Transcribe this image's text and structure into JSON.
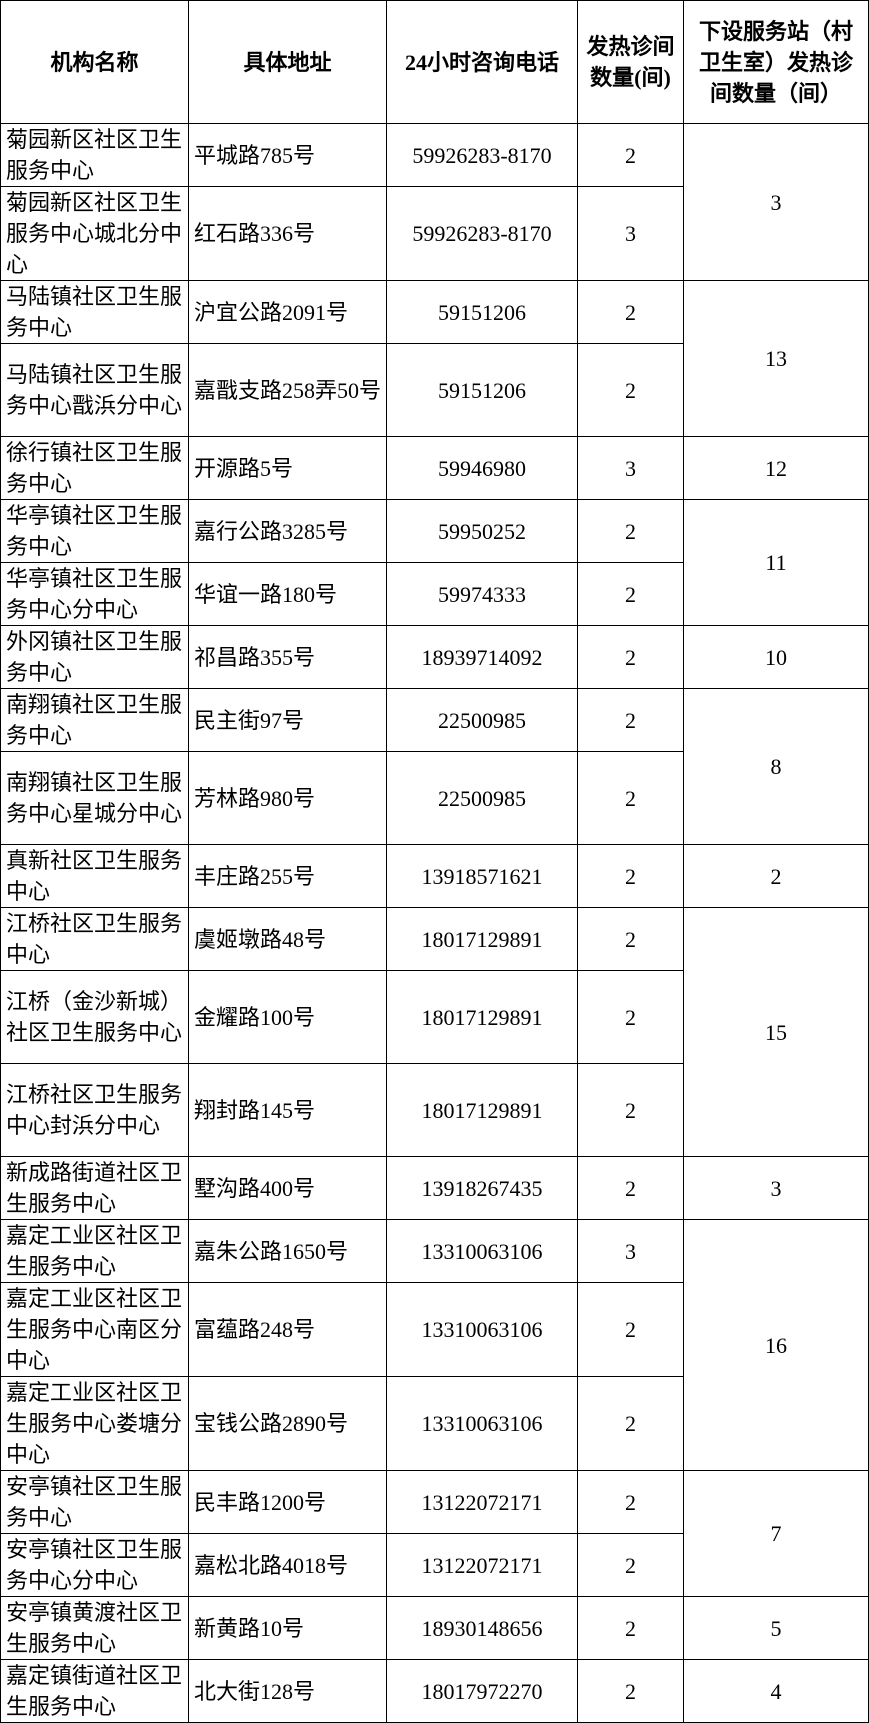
{
  "headers": [
    "机构名称",
    "具体地址",
    "24小时咨询电话",
    "发热诊间数量(间)",
    "下设服务站（村卫生室）发热诊间数量（间）"
  ],
  "rows": [
    {
      "name": "菊园新区社区卫生服务中心",
      "address": "平城路785号",
      "phone": "59926283-8170",
      "fever_rooms": "2",
      "lines": 2
    },
    {
      "name": "菊园新区社区卫生服务中心城北分中心",
      "address": "红石路336号",
      "phone": "59926283-8170",
      "fever_rooms": "3",
      "lines": 3
    },
    {
      "name": "马陆镇社区卫生服务中心",
      "address": "沪宜公路2091号",
      "phone": "59151206",
      "fever_rooms": "2",
      "lines": 2
    },
    {
      "name": "马陆镇社区卫生服务中心戬浜分中心",
      "address": "嘉戬支路258弄50号",
      "phone": "59151206",
      "fever_rooms": "2",
      "lines": 3
    },
    {
      "name": "徐行镇社区卫生服务中心",
      "address": "开源路5号",
      "phone": "59946980",
      "fever_rooms": "3",
      "lines": 2
    },
    {
      "name": "华亭镇社区卫生服务中心",
      "address": "嘉行公路3285号",
      "phone": "59950252",
      "fever_rooms": "2",
      "lines": 2
    },
    {
      "name": "华亭镇社区卫生服务中心分中心",
      "address": "华谊一路180号",
      "phone": "59974333",
      "fever_rooms": "2",
      "lines": 2
    },
    {
      "name": "外冈镇社区卫生服务中心",
      "address": "祁昌路355号",
      "phone": "18939714092",
      "fever_rooms": "2",
      "lines": 2
    },
    {
      "name": "南翔镇社区卫生服务中心",
      "address": "民主街97号",
      "phone": "22500985",
      "fever_rooms": "2",
      "lines": 2
    },
    {
      "name": "南翔镇社区卫生服务中心星城分中心",
      "address": "芳林路980号",
      "phone": "22500985",
      "fever_rooms": "2",
      "lines": 3
    },
    {
      "name": "真新社区卫生服务中心",
      "address": "丰庄路255号",
      "phone": "13918571621",
      "fever_rooms": "2",
      "lines": 2
    },
    {
      "name": "江桥社区卫生服务中心",
      "address": "虞姬墩路48号",
      "phone": "18017129891",
      "fever_rooms": "2",
      "lines": 2
    },
    {
      "name": "江桥（金沙新城）社区卫生服务中心",
      "address": "金耀路100号",
      "phone": "18017129891",
      "fever_rooms": "2",
      "lines": 3
    },
    {
      "name": "江桥社区卫生服务中心封浜分中心",
      "address": "翔封路145号",
      "phone": "18017129891",
      "fever_rooms": "2",
      "lines": 3
    },
    {
      "name": "新成路街道社区卫生服务中心",
      "address": "墅沟路400号",
      "phone": "13918267435",
      "fever_rooms": "2",
      "lines": 2
    },
    {
      "name": "嘉定工业区社区卫生服务中心",
      "address": "嘉朱公路1650号",
      "phone": "13310063106",
      "fever_rooms": "3",
      "lines": 2
    },
    {
      "name": "嘉定工业区社区卫生服务中心南区分中心",
      "address": "富蕴路248号",
      "phone": "13310063106",
      "fever_rooms": "2",
      "lines": 3
    },
    {
      "name": "嘉定工业区社区卫生服务中心娄塘分中心",
      "address": "宝钱公路2890号",
      "phone": "13310063106",
      "fever_rooms": "2",
      "lines": 3
    },
    {
      "name": "安亭镇社区卫生服务中心",
      "address": "民丰路1200号",
      "phone": "13122072171",
      "fever_rooms": "2",
      "lines": 2
    },
    {
      "name": "安亭镇社区卫生服务中心分中心",
      "address": "嘉松北路4018号",
      "phone": "13122072171",
      "fever_rooms": "2",
      "lines": 2
    },
    {
      "name": "安亭镇黄渡社区卫生服务中心",
      "address": "新黄路10号",
      "phone": "18930148656",
      "fever_rooms": "2",
      "lines": 2
    },
    {
      "name": "嘉定镇街道社区卫生服务中心",
      "address": "北大街128号",
      "phone": "18017972270",
      "fever_rooms": "2",
      "lines": 2
    }
  ],
  "station_groups": [
    {
      "start": 0,
      "span": 2,
      "value": "3"
    },
    {
      "start": 2,
      "span": 2,
      "value": "13"
    },
    {
      "start": 4,
      "span": 1,
      "value": "12"
    },
    {
      "start": 5,
      "span": 2,
      "value": "11"
    },
    {
      "start": 7,
      "span": 1,
      "value": "10"
    },
    {
      "start": 8,
      "span": 2,
      "value": "8"
    },
    {
      "start": 10,
      "span": 1,
      "value": "2"
    },
    {
      "start": 11,
      "span": 3,
      "value": "15"
    },
    {
      "start": 14,
      "span": 1,
      "value": "3"
    },
    {
      "start": 15,
      "span": 3,
      "value": "16"
    },
    {
      "start": 18,
      "span": 2,
      "value": "7"
    },
    {
      "start": 20,
      "span": 1,
      "value": "5"
    },
    {
      "start": 22,
      "span": 0,
      "value": ""
    }
  ]
}
